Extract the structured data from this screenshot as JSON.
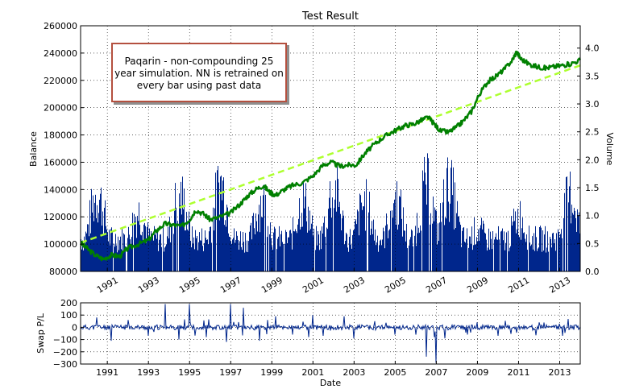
{
  "chart_data": [
    {
      "type": "line",
      "title": "Test Result",
      "ylabel": "Balance",
      "y2label": "Volume",
      "ylim": [
        80000,
        260000
      ],
      "y2lim": [
        0.0,
        4.4
      ],
      "yticks": [
        "80000",
        "100000",
        "120000",
        "140000",
        "160000",
        "180000",
        "200000",
        "220000",
        "240000",
        "260000"
      ],
      "y2ticks": [
        "0.0",
        "0.5",
        "1.0",
        "1.5",
        "2.0",
        "2.5",
        "3.0",
        "3.5",
        "4.0"
      ],
      "xlim": [
        1989.7,
        2014.0
      ],
      "xticks": [
        "1991",
        "1993",
        "1995",
        "1997",
        "1999",
        "2001",
        "2003",
        "2005",
        "2007",
        "2009",
        "2011",
        "2013"
      ],
      "grid": true,
      "annotation": "Paqarin - non-compounding 25 year simulation. NN is retrained on every bar using past data",
      "series": [
        {
          "role": "balance",
          "color": "#008000",
          "points": [
            [
              1989.7,
              101000
            ],
            [
              1990.0,
              97000
            ],
            [
              1990.4,
              92000
            ],
            [
              1990.8,
              89000
            ],
            [
              1991.2,
              92000
            ],
            [
              1991.6,
              91000
            ],
            [
              1992.0,
              97000
            ],
            [
              1992.5,
              100000
            ],
            [
              1993.0,
              103000
            ],
            [
              1993.4,
              110000
            ],
            [
              1993.8,
              115000
            ],
            [
              1994.2,
              114000
            ],
            [
              1994.6,
              113000
            ],
            [
              1995.0,
              118000
            ],
            [
              1995.3,
              125000
            ],
            [
              1995.7,
              122000
            ],
            [
              1996.0,
              118000
            ],
            [
              1996.5,
              120000
            ],
            [
              1997.0,
              123000
            ],
            [
              1997.5,
              130000
            ],
            [
              1997.8,
              135000
            ],
            [
              1998.2,
              140000
            ],
            [
              1998.6,
              143000
            ],
            [
              1998.9,
              138000
            ],
            [
              1999.2,
              136000
            ],
            [
              1999.6,
              140000
            ],
            [
              2000.0,
              143000
            ],
            [
              2000.5,
              145000
            ],
            [
              2001.0,
              150000
            ],
            [
              2001.5,
              158000
            ],
            [
              2001.9,
              160000
            ],
            [
              2002.3,
              157000
            ],
            [
              2002.7,
              158000
            ],
            [
              2003.1,
              158000
            ],
            [
              2003.5,
              166000
            ],
            [
              2003.9,
              172000
            ],
            [
              2004.3,
              177000
            ],
            [
              2004.7,
              181000
            ],
            [
              2005.1,
              184000
            ],
            [
              2005.5,
              187000
            ],
            [
              2005.9,
              188000
            ],
            [
              2006.3,
              191000
            ],
            [
              2006.6,
              193000
            ],
            [
              2006.9,
              188000
            ],
            [
              2007.2,
              183000
            ],
            [
              2007.6,
              182000
            ],
            [
              2008.0,
              186000
            ],
            [
              2008.3,
              190000
            ],
            [
              2008.7,
              197000
            ],
            [
              2009.1,
              210000
            ],
            [
              2009.5,
              219000
            ],
            [
              2009.9,
              223000
            ],
            [
              2010.3,
              228000
            ],
            [
              2010.7,
              235000
            ],
            [
              2010.9,
              241000
            ],
            [
              2011.1,
              236000
            ],
            [
              2011.5,
              232000
            ],
            [
              2011.9,
              230000
            ],
            [
              2012.3,
              229000
            ],
            [
              2012.7,
              230000
            ],
            [
              2013.1,
              231000
            ],
            [
              2013.5,
              232000
            ],
            [
              2014.0,
              235000
            ]
          ]
        },
        {
          "role": "trend",
          "style": "dashed",
          "color": "#adff2f",
          "points": [
            [
              1989.7,
              101000
            ],
            [
              2014.0,
              231000
            ]
          ]
        }
      ],
      "volume_bars": {
        "color": "#00268c",
        "baseline": 0.75,
        "peaks": [
          [
            1990.5,
            1.3
          ],
          [
            1992.5,
            0.9
          ],
          [
            1994.5,
            1.3
          ],
          [
            1996.5,
            1.55
          ],
          [
            1998.5,
            1.15
          ],
          [
            2000.5,
            1.15
          ],
          [
            2002.0,
            1.45
          ],
          [
            2003.5,
            1.1
          ],
          [
            2005.0,
            1.2
          ],
          [
            2006.5,
            1.5
          ],
          [
            2007.6,
            1.5
          ],
          [
            2009.0,
            0.5
          ],
          [
            2011.0,
            0.8
          ],
          [
            2013.5,
            1.3
          ]
        ]
      }
    },
    {
      "type": "line",
      "ylabel": "Swap P/L",
      "xlabel": "Date",
      "ylim": [
        -300,
        200
      ],
      "yticks": [
        "200",
        "100",
        "0",
        "−100",
        "−200",
        "−300"
      ],
      "xticks": [
        "1991",
        "1993",
        "1995",
        "1997",
        "1999",
        "2001",
        "2003",
        "2005",
        "2007",
        "2009",
        "2011",
        "2013"
      ],
      "grid": true,
      "series": [
        {
          "color": "#00268c",
          "spikes": [
            [
              1990.5,
              80
            ],
            [
              1991.2,
              -110
            ],
            [
              1992.0,
              60
            ],
            [
              1993.0,
              -70
            ],
            [
              1993.8,
              190
            ],
            [
              1994.5,
              -100
            ],
            [
              1995.0,
              190
            ],
            [
              1995.8,
              -80
            ],
            [
              1996.8,
              -120
            ],
            [
              1997.0,
              190
            ],
            [
              1997.6,
              160
            ],
            [
              1998.4,
              -110
            ],
            [
              1998.8,
              60
            ],
            [
              1999.2,
              90
            ],
            [
              2000.0,
              -60
            ],
            [
              2000.8,
              -80
            ],
            [
              2001.0,
              100
            ],
            [
              2001.5,
              -70
            ],
            [
              2002.5,
              90
            ],
            [
              2003.0,
              -90
            ],
            [
              2004.0,
              50
            ],
            [
              2005.0,
              -60
            ],
            [
              2006.0,
              -60
            ],
            [
              2006.5,
              -240
            ],
            [
              2006.9,
              -80
            ],
            [
              2007.0,
              -290
            ],
            [
              2007.4,
              -90
            ],
            [
              2008.5,
              -60
            ],
            [
              2009.0,
              40
            ],
            [
              2010.0,
              -70
            ],
            [
              2012.0,
              40
            ]
          ]
        }
      ]
    }
  ]
}
